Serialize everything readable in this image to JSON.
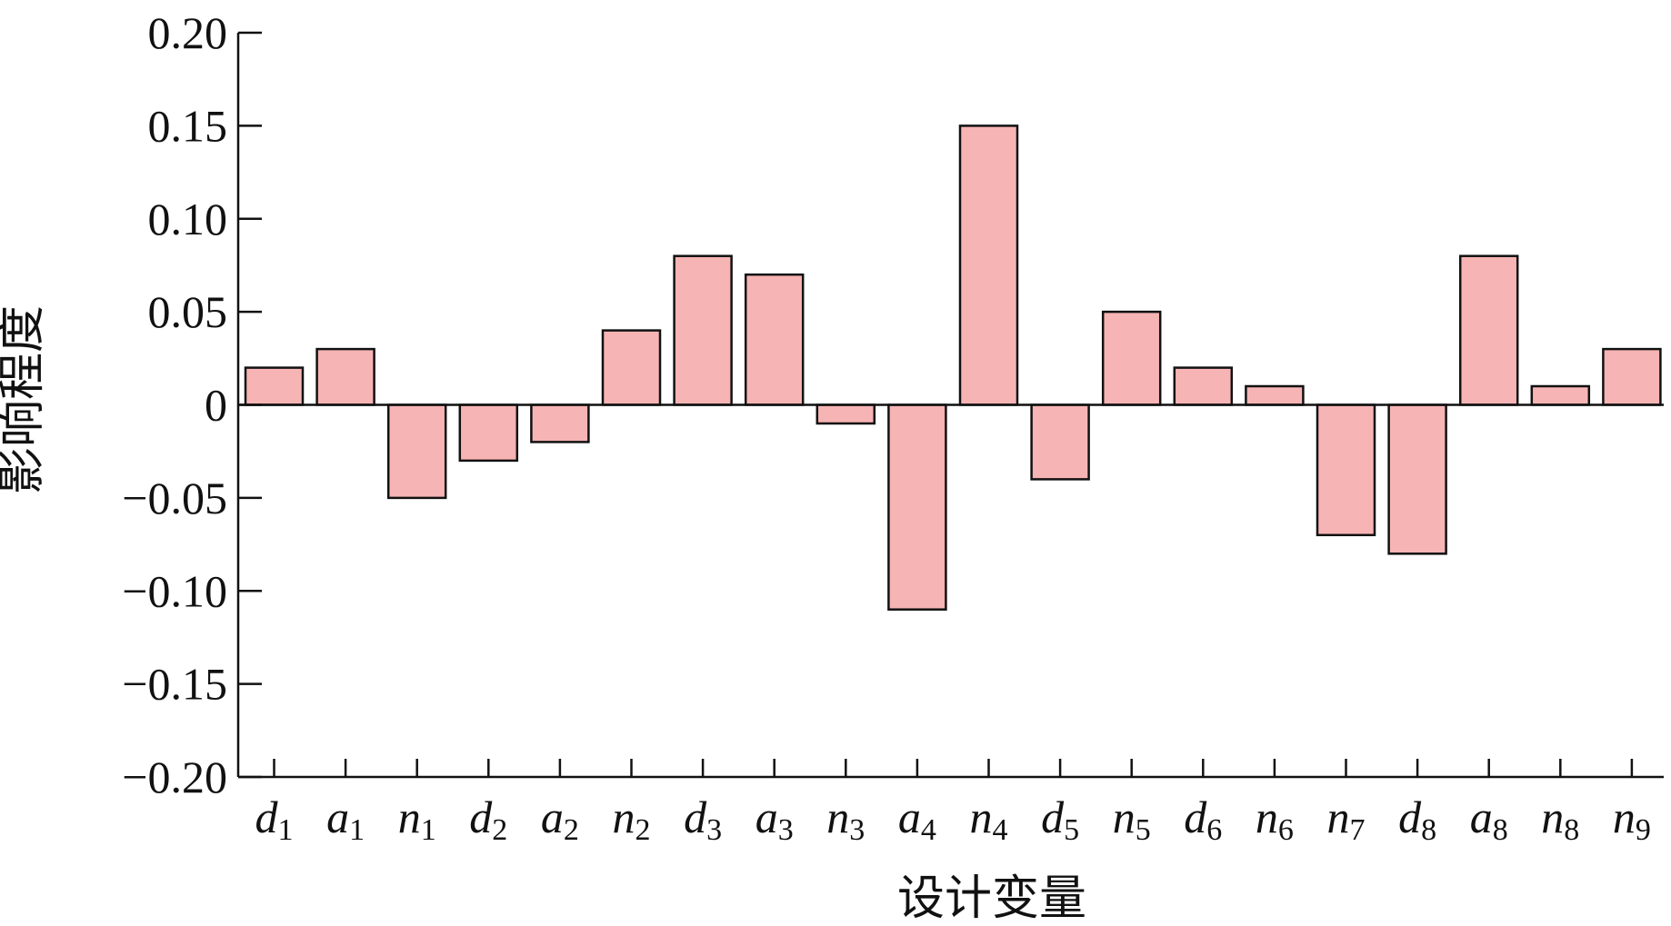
{
  "chart_data": {
    "type": "bar",
    "title": "",
    "xlabel": "设计变量",
    "ylabel": "影响程度",
    "ylim": [
      -0.2,
      0.2
    ],
    "yticks": [
      0.2,
      0.15,
      0.1,
      0.05,
      0,
      -0.05,
      -0.1,
      -0.15,
      -0.2
    ],
    "ytick_labels": [
      "0.20",
      "0.15",
      "0.10",
      "0.05",
      "0",
      "−0.05",
      "−0.10",
      "−0.15",
      "−0.20"
    ],
    "categories": [
      {
        "var": "d",
        "sub": "1"
      },
      {
        "var": "a",
        "sub": "1"
      },
      {
        "var": "n",
        "sub": "1"
      },
      {
        "var": "d",
        "sub": "2"
      },
      {
        "var": "a",
        "sub": "2"
      },
      {
        "var": "n",
        "sub": "2"
      },
      {
        "var": "d",
        "sub": "3"
      },
      {
        "var": "a",
        "sub": "3"
      },
      {
        "var": "n",
        "sub": "3"
      },
      {
        "var": "a",
        "sub": "4"
      },
      {
        "var": "n",
        "sub": "4"
      },
      {
        "var": "d",
        "sub": "5"
      },
      {
        "var": "n",
        "sub": "5"
      },
      {
        "var": "d",
        "sub": "6"
      },
      {
        "var": "n",
        "sub": "6"
      },
      {
        "var": "n",
        "sub": "7"
      },
      {
        "var": "d",
        "sub": "8"
      },
      {
        "var": "a",
        "sub": "8"
      },
      {
        "var": "n",
        "sub": "8"
      },
      {
        "var": "n",
        "sub": "9"
      }
    ],
    "values": [
      0.02,
      0.03,
      -0.05,
      -0.03,
      -0.02,
      0.04,
      0.08,
      0.07,
      -0.01,
      -0.11,
      0.15,
      -0.04,
      0.05,
      0.02,
      0.01,
      -0.07,
      -0.08,
      0.08,
      0.01,
      0.03
    ],
    "grid": false,
    "legend": "none",
    "bar_color": "#f7b4b4",
    "bar_edge_color": "#111111"
  }
}
